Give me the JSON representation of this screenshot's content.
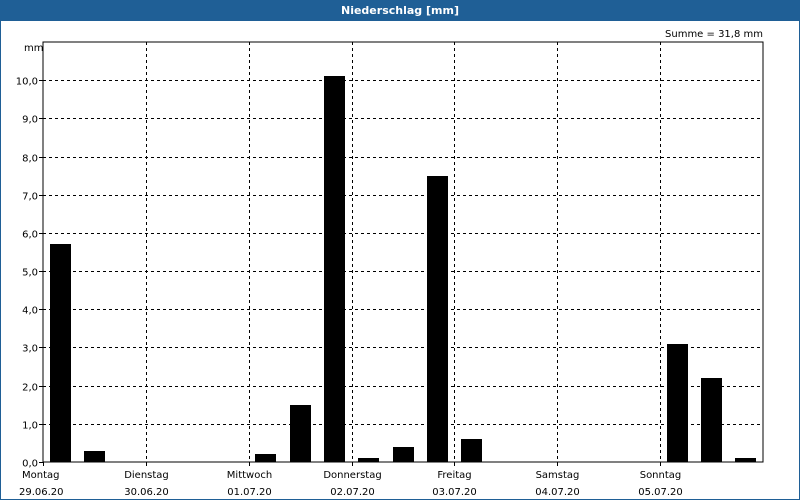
{
  "chart_data": {
    "type": "bar",
    "title": "Niederschlag [mm]",
    "ylabel": "mm",
    "summary": "Summe = 31,8 mm",
    "ylim": [
      0,
      11
    ],
    "yticks": [
      "0,0",
      "1,0",
      "2,0",
      "3,0",
      "4,0",
      "5,0",
      "6,0",
      "7,0",
      "8,0",
      "9,0",
      "10,0"
    ],
    "days": [
      {
        "name": "Montag",
        "date": "29.06.20"
      },
      {
        "name": "Dienstag",
        "date": "30.06.20"
      },
      {
        "name": "Mittwoch",
        "date": "01.07.20"
      },
      {
        "name": "Donnerstag",
        "date": "02.07.20"
      },
      {
        "name": "Freitag",
        "date": "03.07.20"
      },
      {
        "name": "Samstag",
        "date": "04.07.20"
      },
      {
        "name": "Sonntag",
        "date": "05.07.20"
      }
    ],
    "bars_per_day": 3,
    "values": [
      5.7,
      0.3,
      0,
      0,
      0,
      0,
      0.2,
      1.5,
      10.1,
      0.1,
      0.4,
      7.5,
      0.6,
      0,
      0,
      0,
      0,
      0,
      3.1,
      2.2,
      0.1
    ],
    "grid": true,
    "colors": {
      "bar": "#000000",
      "title_bg": "#1f5f96",
      "title_fg": "#ffffff",
      "grid": "#000000"
    }
  }
}
